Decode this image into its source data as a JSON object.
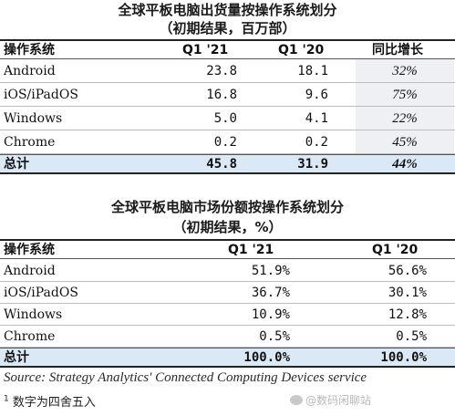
{
  "table1": {
    "title": "全球平板电脑出货量按操作系统划分",
    "subtitle": "（初期结果，百万部）",
    "headers": [
      "操作系统",
      "Q1 '21",
      "Q1 '20",
      "同比增长"
    ],
    "rows": [
      {
        "os": "Android",
        "q121": "23.8",
        "q120": "18.1",
        "yoy": "32%"
      },
      {
        "os": "iOS/iPadOS",
        "q121": "16.8",
        "q120": "9.6",
        "yoy": "75%"
      },
      {
        "os": "Windows",
        "q121": "5.0",
        "q120": "4.1",
        "yoy": "22%"
      },
      {
        "os": "Chrome",
        "q121": "0.2",
        "q120": "0.2",
        "yoy": "45%"
      }
    ],
    "total": {
      "label": "总计",
      "q121": "45.8",
      "q120": "31.9",
      "yoy": "44%"
    }
  },
  "table2": {
    "title": "全球平板电脑市场份额按操作系统划分",
    "subtitle": "（初期结果，%）",
    "headers": [
      "操作系统",
      "Q1 '21",
      "Q1 '20"
    ],
    "rows": [
      {
        "os": "Android",
        "q121": "51.9%",
        "q120": "56.6%"
      },
      {
        "os": "iOS/iPadOS",
        "q121": "36.7%",
        "q120": "30.1%"
      },
      {
        "os": "Windows",
        "q121": "10.9%",
        "q120": "12.8%"
      },
      {
        "os": "Chrome",
        "q121": "0.5%",
        "q120": "0.5%"
      }
    ],
    "total": {
      "label": "总计",
      "q121": "100.0%",
      "q120": "100.0%"
    }
  },
  "footer": {
    "source": "Source: Strategy Analytics' Connected Computing Devices service",
    "note_marker": "1",
    "note": "数字为四舍五入",
    "watermark": "@数码闲聊站"
  }
}
